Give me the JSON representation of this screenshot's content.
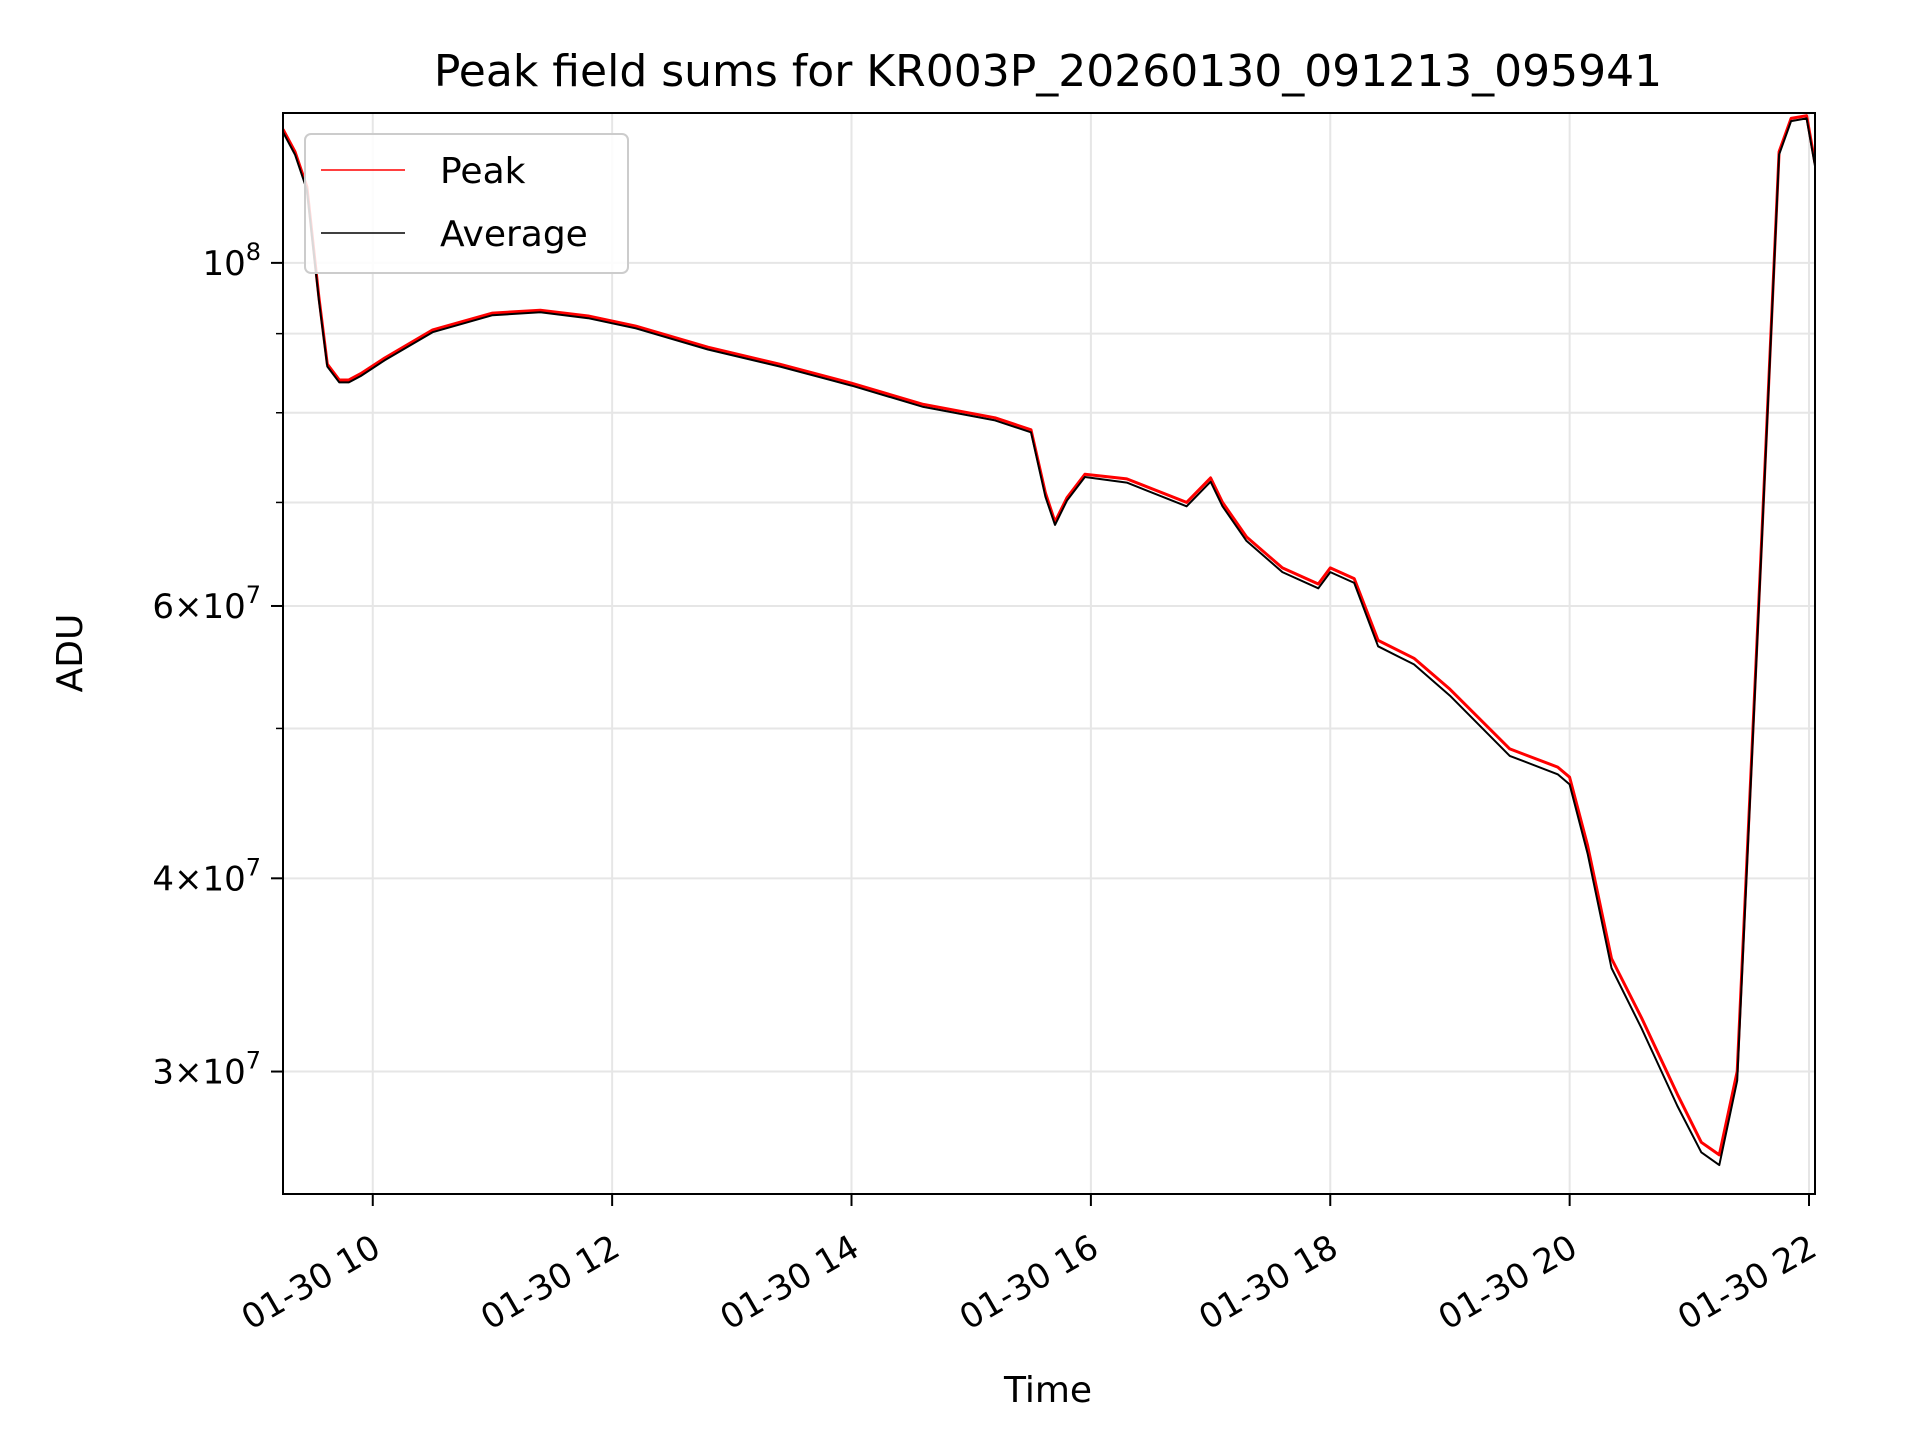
{
  "chart_data": {
    "type": "line",
    "title": "Peak field sums for KR003P_20260130_091213_095941",
    "xlabel": "Time",
    "ylabel": "ADU",
    "xlim": [
      9.25,
      22.05
    ],
    "ylim": [
      25000000,
      125000000
    ],
    "y_scale": "log",
    "grid": true,
    "legend_position": "top-left",
    "x_ticks": [
      {
        "value": 10,
        "label": "01-30 10"
      },
      {
        "value": 12,
        "label": "01-30 12"
      },
      {
        "value": 14,
        "label": "01-30 14"
      },
      {
        "value": 16,
        "label": "01-30 16"
      },
      {
        "value": 18,
        "label": "01-30 18"
      },
      {
        "value": 20,
        "label": "01-30 20"
      },
      {
        "value": 22,
        "label": "01-30 22"
      }
    ],
    "y_ticks": [
      {
        "value": 30000000,
        "mantissa": "3",
        "exponent": "7"
      },
      {
        "value": 40000000,
        "mantissa": "4",
        "exponent": "7"
      },
      {
        "value": 60000000,
        "mantissa": "6",
        "exponent": "7"
      },
      {
        "value": 100000000,
        "mantissa": "",
        "exponent": "8"
      }
    ],
    "y_minor_ticks": [
      50000000,
      70000000,
      80000000,
      90000000
    ],
    "series": [
      {
        "name": "Peak",
        "color": "#ff0000",
        "x": [
          9.25,
          9.35,
          9.45,
          9.55,
          9.62,
          9.72,
          9.8,
          9.9,
          10.1,
          10.5,
          11.0,
          11.4,
          11.8,
          12.2,
          12.8,
          13.4,
          14.0,
          14.6,
          15.2,
          15.5,
          15.62,
          15.7,
          15.8,
          15.95,
          16.3,
          16.8,
          17.0,
          17.1,
          17.3,
          17.6,
          17.9,
          18.0,
          18.2,
          18.4,
          18.7,
          19.0,
          19.5,
          19.9,
          20.0,
          20.15,
          20.35,
          20.6,
          20.9,
          21.1,
          21.25,
          21.4,
          21.6,
          21.75,
          21.85,
          21.98,
          22.05
        ],
        "values": [
          122000000,
          118000000,
          112000000,
          95000000,
          86000000,
          84000000,
          84000000,
          84800000,
          86800000,
          90500000,
          92800000,
          93200000,
          92400000,
          91000000,
          88200000,
          86000000,
          83600000,
          81000000,
          79400000,
          78000000,
          71000000,
          68000000,
          70500000,
          73000000,
          72500000,
          70000000,
          72600000,
          70000000,
          66500000,
          63500000,
          62000000,
          63500000,
          62500000,
          57000000,
          55500000,
          53000000,
          48500000,
          47200000,
          46500000,
          42000000,
          35500000,
          32500000,
          29000000,
          27000000,
          26500000,
          30000000,
          65000000,
          118000000,
          124000000,
          124500000,
          116000000
        ]
      },
      {
        "name": "Average",
        "color": "#000000",
        "x": [
          9.25,
          9.35,
          9.45,
          9.55,
          9.62,
          9.72,
          9.8,
          9.9,
          10.1,
          10.5,
          11.0,
          11.4,
          11.8,
          12.2,
          12.8,
          13.4,
          14.0,
          14.6,
          15.2,
          15.5,
          15.62,
          15.7,
          15.8,
          15.95,
          16.3,
          16.8,
          17.0,
          17.1,
          17.3,
          17.6,
          17.9,
          18.0,
          18.2,
          18.4,
          18.7,
          19.0,
          19.5,
          19.9,
          20.0,
          20.15,
          20.35,
          20.6,
          20.9,
          21.1,
          21.25,
          21.4,
          21.6,
          21.75,
          21.85,
          21.98,
          22.05
        ],
        "values": [
          121500000,
          117500000,
          111500000,
          94600000,
          85700000,
          83700000,
          83700000,
          84500000,
          86500000,
          90200000,
          92500000,
          92900000,
          92100000,
          90700000,
          87900000,
          85700000,
          83300000,
          80700000,
          79100000,
          77700000,
          70600000,
          67700000,
          70200000,
          72700000,
          72100000,
          69600000,
          72200000,
          69600000,
          66100000,
          63100000,
          61600000,
          63100000,
          62100000,
          56500000,
          55000000,
          52500000,
          48000000,
          46700000,
          46000000,
          41500000,
          35000000,
          32000000,
          28500000,
          26600000,
          26100000,
          29600000,
          64500000,
          117500000,
          123500000,
          124000000,
          115500000
        ]
      }
    ]
  }
}
